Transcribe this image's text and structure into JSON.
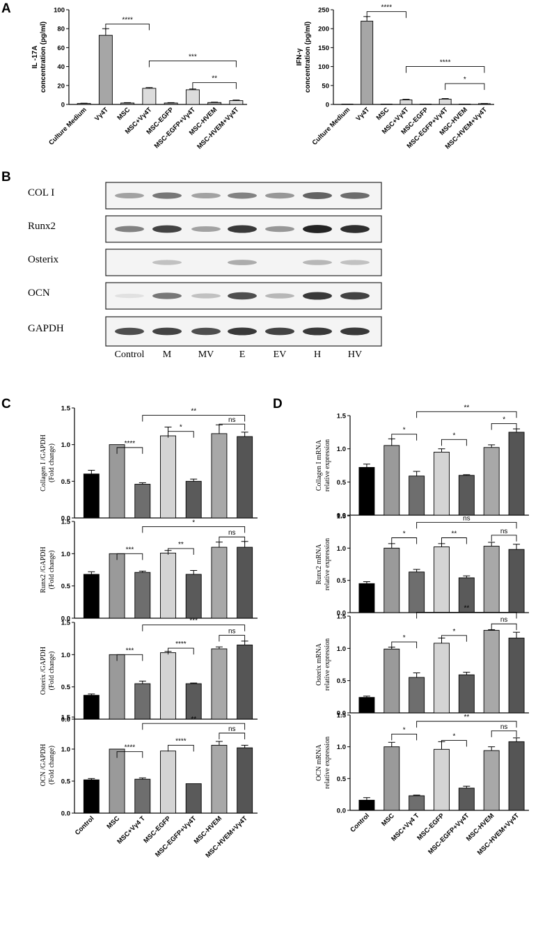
{
  "panels": {
    "A": "A",
    "B": "B",
    "C": "C",
    "D": "D"
  },
  "blot": {
    "proteins": [
      "COL I",
      "Runx2",
      "Osterix",
      "OCN",
      "GAPDH"
    ],
    "lanes": [
      "Control",
      "M",
      "MV",
      "E",
      "EV",
      "H",
      "HV"
    ],
    "band_intensity": [
      [
        0.35,
        0.55,
        0.35,
        0.5,
        0.4,
        0.65,
        0.6
      ],
      [
        0.5,
        0.8,
        0.35,
        0.85,
        0.4,
        0.95,
        0.9
      ],
      [
        0.02,
        0.2,
        0.02,
        0.3,
        0.02,
        0.25,
        0.2
      ],
      [
        0.05,
        0.55,
        0.2,
        0.75,
        0.25,
        0.85,
        0.8
      ],
      [
        0.75,
        0.8,
        0.75,
        0.85,
        0.8,
        0.85,
        0.85
      ]
    ]
  },
  "chart_data": [
    {
      "type": "bar",
      "panel": "A",
      "ylabel": "IL -17A\nconcentration (pg/ml)",
      "categories": [
        "Culture Medium",
        "Vγ4T",
        "MSC",
        "MSC+Vγ4T",
        "MSC-EGFP",
        "MSC-EGFP+Vγ4T",
        "MSC-HVEM",
        "MSC-HVEM+Vγ4T"
      ],
      "values": [
        1,
        73,
        1.5,
        17,
        1.5,
        15.5,
        2,
        4
      ],
      "errors": [
        0.3,
        7,
        0.4,
        0.8,
        0.4,
        0.8,
        0.4,
        0.6
      ],
      "yticks": [
        0,
        20,
        40,
        60,
        80,
        100
      ],
      "ylim": [
        0,
        100
      ],
      "significance": [
        {
          "from": 1,
          "to": 3,
          "label": "****",
          "y": 85
        },
        {
          "from": 3,
          "to": 7,
          "label": "***",
          "y": 46
        },
        {
          "from": 5,
          "to": 7,
          "label": "**",
          "y": 23
        }
      ]
    },
    {
      "type": "bar",
      "panel": "A",
      "ylabel": "IFN-γ\nconcentration (pg/ml)",
      "categories": [
        "Culture Medium",
        "Vγ4T",
        "MSC",
        "MSC+Vγ4T",
        "MSC-EGFP",
        "MSC-EGFP+Vγ4T",
        "MSC-HVEM",
        "MSC-HVEM+Vγ4T"
      ],
      "values": [
        0,
        220,
        0,
        12,
        0,
        14,
        0,
        2
      ],
      "errors": [
        0,
        12,
        0,
        1.5,
        0,
        1.5,
        0,
        0.5
      ],
      "yticks": [
        0,
        50,
        100,
        150,
        200,
        250
      ],
      "ylim": [
        0,
        250
      ],
      "significance": [
        {
          "from": 1,
          "to": 3,
          "label": "****",
          "y": 245
        },
        {
          "from": 3,
          "to": 7,
          "label": "****",
          "y": 100
        },
        {
          "from": 5,
          "to": 7,
          "label": "*",
          "y": 55
        }
      ]
    },
    {
      "type": "bar",
      "panel": "C",
      "ylabel": "Collagen I /GAPDH\n(Fold change)",
      "categories": [
        "Control",
        "MSC",
        "MSC+Vγ4 T",
        "MSC-EGFP",
        "MSC-EGFP+Vγ4T",
        "MSC-HVEM",
        "MSC-HVEM+Vγ4T"
      ],
      "values": [
        0.6,
        1.0,
        0.46,
        1.12,
        0.5,
        1.15,
        1.11
      ],
      "errors": [
        0.05,
        0.0,
        0.02,
        0.12,
        0.03,
        0.12,
        0.06
      ],
      "yticks": [
        0.0,
        0.5,
        1.0,
        1.5
      ],
      "ylim": [
        0,
        1.5
      ],
      "significance": [
        {
          "from": 1,
          "to": 2,
          "label": "****",
          "y": 0.96
        },
        {
          "from": 3,
          "to": 4,
          "label": "*",
          "y": 1.18
        },
        {
          "from": 2,
          "to": 6,
          "label": "**",
          "y": 1.4
        },
        {
          "from": 5,
          "to": 6,
          "label": "ns",
          "y": 1.28
        }
      ]
    },
    {
      "type": "bar",
      "panel": "C",
      "ylabel": "Runx2 /GAPDH\n(Fold change)",
      "categories": [
        "Control",
        "MSC",
        "MSC+Vγ4 T",
        "MSC-EGFP",
        "MSC-EGFP+Vγ4T",
        "MSC-HVEM",
        "MSC-HVEM+Vγ4T"
      ],
      "values": [
        0.68,
        1.0,
        0.71,
        1.01,
        0.68,
        1.1,
        1.1
      ],
      "errors": [
        0.04,
        0.0,
        0.02,
        0.04,
        0.06,
        0.08,
        0.09
      ],
      "yticks": [
        0.0,
        0.5,
        1.0,
        1.5
      ],
      "ylim": [
        0,
        1.5
      ],
      "significance": [
        {
          "from": 1,
          "to": 2,
          "label": "***",
          "y": 1.0
        },
        {
          "from": 3,
          "to": 4,
          "label": "**",
          "y": 1.08
        },
        {
          "from": 2,
          "to": 6,
          "label": "*",
          "y": 1.42
        },
        {
          "from": 5,
          "to": 6,
          "label": "ns",
          "y": 1.26
        }
      ]
    },
    {
      "type": "bar",
      "panel": "C",
      "ylabel": "Osterix /GAPDH\n(Fold change)",
      "categories": [
        "Control",
        "MSC",
        "MSC+Vγ4 T",
        "MSC-EGFP",
        "MSC-EGFP+Vγ4T",
        "MSC-HVEM",
        "MSC-HVEM+Vγ4T"
      ],
      "values": [
        0.37,
        1.0,
        0.55,
        1.03,
        0.55,
        1.09,
        1.15
      ],
      "errors": [
        0.02,
        0.0,
        0.04,
        0.02,
        0.01,
        0.03,
        0.06
      ],
      "yticks": [
        0.0,
        0.5,
        1.0,
        1.5
      ],
      "ylim": [
        0,
        1.5
      ],
      "significance": [
        {
          "from": 1,
          "to": 2,
          "label": "***",
          "y": 1.0
        },
        {
          "from": 3,
          "to": 4,
          "label": "****",
          "y": 1.1
        },
        {
          "from": 2,
          "to": 6,
          "label": "***",
          "y": 1.46
        },
        {
          "from": 5,
          "to": 6,
          "label": "ns",
          "y": 1.3
        }
      ]
    },
    {
      "type": "bar",
      "panel": "C",
      "ylabel": "OCN /GAPDH\n(Fold change)",
      "categories": [
        "Control",
        "MSC",
        "MSC+Vγ4 T",
        "MSC-EGFP",
        "MSC-EGFP+Vγ4T",
        "MSC-HVEM",
        "MSC-HVEM+Vγ4T"
      ],
      "values": [
        0.52,
        1.0,
        0.53,
        0.97,
        0.46,
        1.06,
        1.02
      ],
      "errors": [
        0.02,
        0.0,
        0.02,
        0.0,
        0.0,
        0.06,
        0.04
      ],
      "yticks": [
        0.0,
        0.5,
        1.0,
        1.5
      ],
      "ylim": [
        0,
        1.5
      ],
      "significance": [
        {
          "from": 1,
          "to": 2,
          "label": "****",
          "y": 0.96
        },
        {
          "from": 3,
          "to": 4,
          "label": "****",
          "y": 1.06
        },
        {
          "from": 2,
          "to": 6,
          "label": "**",
          "y": 1.4
        },
        {
          "from": 5,
          "to": 6,
          "label": "ns",
          "y": 1.25
        }
      ]
    },
    {
      "type": "bar",
      "panel": "D",
      "ylabel": "Collagen I mRNA\nrelative expression",
      "categories": [
        "Control",
        "MSC",
        "MSC+Vγ4 T",
        "MSC-EGFP",
        "MSC-EGFP+Vγ4T",
        "MSC-HVEM",
        "MSC-HVEM+Vγ4T"
      ],
      "values": [
        0.72,
        1.05,
        0.59,
        0.95,
        0.6,
        1.02,
        1.25
      ],
      "errors": [
        0.05,
        0.1,
        0.07,
        0.05,
        0.01,
        0.04,
        0.05
      ],
      "yticks": [
        0.0,
        0.5,
        1.0,
        1.5
      ],
      "ylim": [
        0,
        1.5
      ],
      "significance": [
        {
          "from": 1,
          "to": 2,
          "label": "*",
          "y": 1.22
        },
        {
          "from": 3,
          "to": 4,
          "label": "*",
          "y": 1.14
        },
        {
          "from": 2,
          "to": 6,
          "label": "**",
          "y": 1.56
        },
        {
          "from": 5,
          "to": 6,
          "label": "*",
          "y": 1.38
        }
      ]
    },
    {
      "type": "bar",
      "panel": "D",
      "ylabel": "Runx2 mRNA\nrelative expression",
      "categories": [
        "Control",
        "MSC",
        "MSC+Vγ4 T",
        "MSC-EGFP",
        "MSC-EGFP+Vγ4T",
        "MSC-HVEM",
        "MSC-HVEM+Vγ4T"
      ],
      "values": [
        0.45,
        1.0,
        0.63,
        1.02,
        0.54,
        1.03,
        0.98
      ],
      "errors": [
        0.03,
        0.07,
        0.04,
        0.05,
        0.03,
        0.06,
        0.08
      ],
      "yticks": [
        0.0,
        0.5,
        1.0,
        1.5
      ],
      "ylim": [
        0,
        1.5
      ],
      "significance": [
        {
          "from": 1,
          "to": 2,
          "label": "*",
          "y": 1.16
        },
        {
          "from": 3,
          "to": 4,
          "label": "**",
          "y": 1.16
        },
        {
          "from": 2,
          "to": 6,
          "label": "ns",
          "y": 1.4
        },
        {
          "from": 5,
          "to": 6,
          "label": "ns",
          "y": 1.2
        }
      ]
    },
    {
      "type": "bar",
      "panel": "D",
      "ylabel": "Osterix mRNA\nrelative expression",
      "categories": [
        "Control",
        "MSC",
        "MSC+Vγ4 T",
        "MSC-EGFP",
        "MSC-EGFP+Vγ4T",
        "MSC-HVEM",
        "MSC-HVEM+Vγ4T"
      ],
      "values": [
        0.24,
        0.99,
        0.55,
        1.08,
        0.59,
        1.28,
        1.16
      ],
      "errors": [
        0.02,
        0.03,
        0.07,
        0.08,
        0.04,
        0.01,
        0.09
      ],
      "yticks": [
        0.0,
        0.5,
        1.0,
        1.5
      ],
      "ylim": [
        0,
        1.5
      ],
      "significance": [
        {
          "from": 1,
          "to": 2,
          "label": "*",
          "y": 1.1
        },
        {
          "from": 3,
          "to": 4,
          "label": "*",
          "y": 1.2
        },
        {
          "from": 2,
          "to": 6,
          "label": "**",
          "y": 1.56
        },
        {
          "from": 5,
          "to": 6,
          "label": "ns",
          "y": 1.38
        }
      ]
    },
    {
      "type": "bar",
      "panel": "D",
      "ylabel": "OCN mRNA\nrelative expression",
      "categories": [
        "Control",
        "MSC",
        "MSC+Vγ4 T",
        "MSC-EGFP",
        "MSC-EGFP+Vγ4T",
        "MSC-HVEM",
        "MSC-HVEM+Vγ4T"
      ],
      "values": [
        0.16,
        1.0,
        0.23,
        0.96,
        0.35,
        0.94,
        1.08
      ],
      "errors": [
        0.04,
        0.07,
        0.01,
        0.12,
        0.03,
        0.06,
        0.06
      ],
      "yticks": [
        0.0,
        0.5,
        1.0,
        1.5
      ],
      "ylim": [
        0,
        1.5
      ],
      "significance": [
        {
          "from": 1,
          "to": 2,
          "label": "*",
          "y": 1.2
        },
        {
          "from": 3,
          "to": 4,
          "label": "*",
          "y": 1.1
        },
        {
          "from": 2,
          "to": 6,
          "label": "**",
          "y": 1.4
        },
        {
          "from": 5,
          "to": 6,
          "label": "ns",
          "y": 1.25
        }
      ]
    }
  ],
  "colors": {
    "panelA": [
      "#a6a6a6",
      "#a6a6a6",
      "#a6a6a6",
      "#dcdcdc",
      "#a6a6a6",
      "#dcdcdc",
      "#a6a6a6",
      "#dcdcdc"
    ],
    "panelCD": [
      "#000000",
      "#9a9a9a",
      "#6e6e6e",
      "#d4d4d4",
      "#5a5a5a",
      "#a8a8a8",
      "#555555"
    ]
  }
}
